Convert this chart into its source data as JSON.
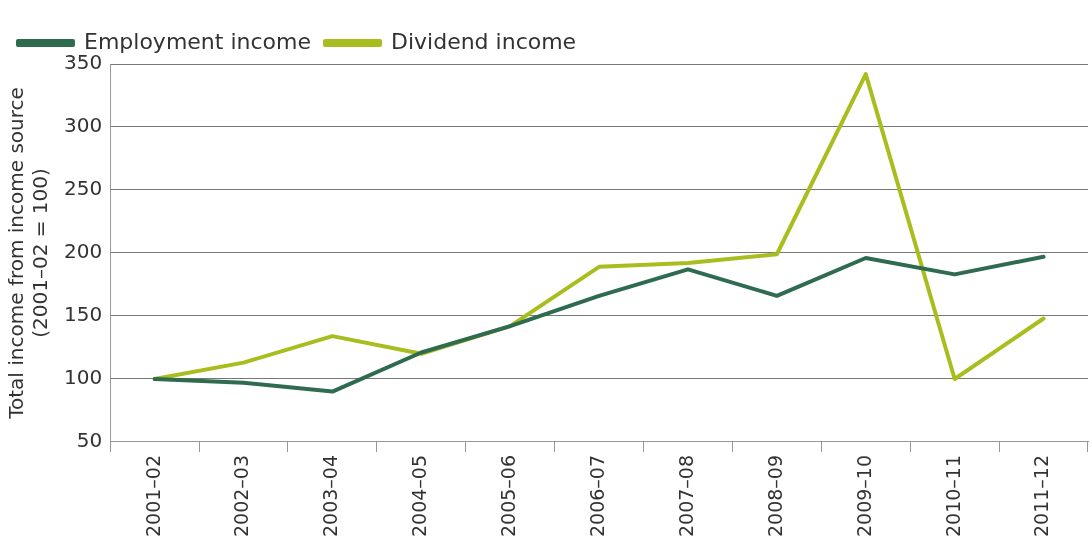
{
  "chart_data": {
    "type": "line",
    "ylabel": "Total income from income source\n(2001–02 = 100)",
    "categories": [
      "2001–02",
      "2002–03",
      "2003–04",
      "2004–05",
      "2005–06",
      "2006–07",
      "2007–08",
      "2008–09",
      "2009–10",
      "2010–11",
      "2011–12"
    ],
    "series": [
      {
        "name": "Employment income",
        "color": "#2e6b4f",
        "values": [
          100,
          97,
          90,
          121,
          142,
          166,
          187,
          166,
          196,
          183,
          197
        ]
      },
      {
        "name": "Dividend income",
        "color": "#aabd1e",
        "values": [
          100,
          113,
          134,
          120,
          142,
          189,
          192,
          199,
          342,
          100,
          148
        ]
      }
    ],
    "ylim": [
      50,
      350
    ],
    "yticks": [
      50,
      100,
      150,
      200,
      250,
      300,
      350
    ],
    "grid": "y",
    "legend": "top left",
    "marker": "none",
    "line_style": "solid"
  }
}
